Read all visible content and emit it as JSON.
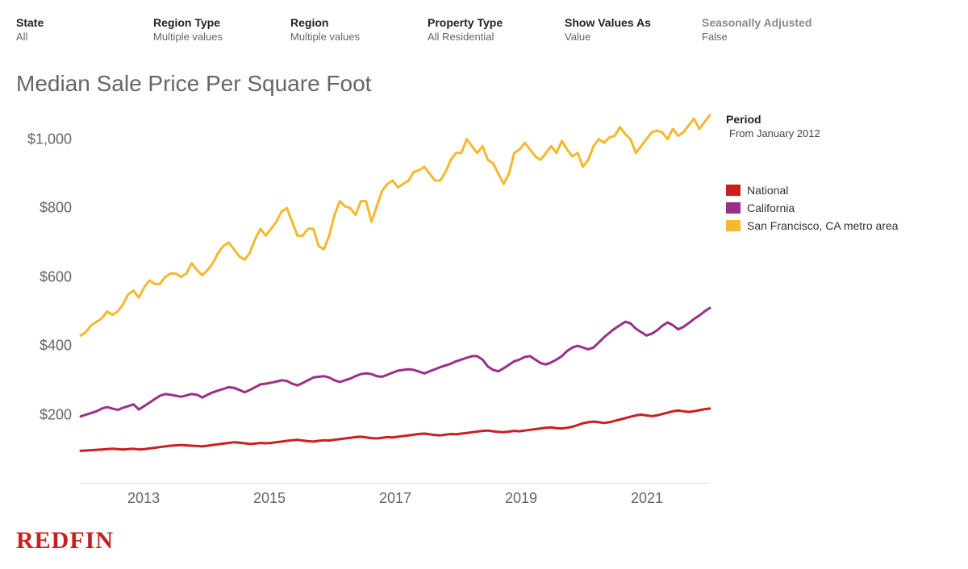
{
  "filters": [
    {
      "label": "State",
      "value": "All",
      "muted": false
    },
    {
      "label": "Region Type",
      "value": "Multiple values",
      "muted": false
    },
    {
      "label": "Region",
      "value": "Multiple values",
      "muted": false
    },
    {
      "label": "Property Type",
      "value": "All Residential",
      "muted": false
    },
    {
      "label": "Show Values As",
      "value": "Value",
      "muted": false
    },
    {
      "label": "Seasonally Adjusted",
      "value": "False",
      "muted": true
    }
  ],
  "title": "Median Sale Price Per Square Foot",
  "period": {
    "label": "Period",
    "value": "From January 2012"
  },
  "legend": [
    {
      "label": "National",
      "color": "#c82021"
    },
    {
      "label": "California",
      "color": "#9b2f86"
    },
    {
      "label": "San Francisco, CA metro area",
      "color": "#f5b82e"
    }
  ],
  "logo": "REDFIN",
  "chart": {
    "type": "line",
    "background_color": "#ffffff",
    "line_width": 3,
    "x": {
      "min": 2012,
      "max": 2022,
      "ticks": [
        2013,
        2015,
        2017,
        2019,
        2021
      ]
    },
    "y": {
      "min": 0,
      "max": 1100,
      "ticks": [
        200,
        400,
        600,
        800,
        1000
      ],
      "prefix": "$",
      "format_thousands": true
    },
    "series": [
      {
        "name": "San Francisco, CA metro area",
        "color": "#f5b82e",
        "values": [
          430,
          440,
          460,
          470,
          480,
          500,
          490,
          500,
          520,
          550,
          560,
          540,
          570,
          590,
          580,
          580,
          600,
          610,
          610,
          600,
          610,
          640,
          620,
          605,
          620,
          640,
          670,
          690,
          700,
          680,
          660,
          650,
          670,
          710,
          740,
          720,
          740,
          760,
          790,
          800,
          760,
          720,
          720,
          740,
          740,
          690,
          680,
          720,
          780,
          820,
          805,
          800,
          780,
          820,
          820,
          760,
          805,
          850,
          870,
          880,
          860,
          870,
          880,
          905,
          910,
          920,
          900,
          880,
          880,
          905,
          940,
          960,
          960,
          1000,
          980,
          960,
          980,
          940,
          930,
          900,
          870,
          900,
          960,
          970,
          990,
          970,
          950,
          940,
          960,
          980,
          960,
          995,
          970,
          950,
          960,
          920,
          940,
          980,
          1000,
          990,
          1005,
          1010,
          1035,
          1015,
          1000,
          960,
          980,
          1000,
          1020,
          1025,
          1020,
          1000,
          1030,
          1010,
          1020,
          1040,
          1060,
          1030,
          1050,
          1070
        ]
      },
      {
        "name": "California",
        "color": "#9b2f86",
        "values": [
          195,
          200,
          205,
          210,
          218,
          222,
          218,
          214,
          220,
          225,
          230,
          215,
          225,
          235,
          245,
          255,
          260,
          258,
          255,
          252,
          256,
          260,
          258,
          250,
          258,
          265,
          270,
          275,
          280,
          278,
          272,
          265,
          272,
          280,
          288,
          290,
          293,
          296,
          300,
          298,
          290,
          285,
          292,
          300,
          308,
          310,
          312,
          308,
          300,
          295,
          300,
          305,
          312,
          318,
          320,
          318,
          312,
          310,
          316,
          322,
          328,
          330,
          332,
          330,
          325,
          320,
          326,
          332,
          338,
          343,
          348,
          355,
          360,
          365,
          370,
          370,
          360,
          340,
          330,
          326,
          335,
          345,
          355,
          360,
          368,
          370,
          360,
          350,
          346,
          352,
          360,
          370,
          385,
          395,
          400,
          395,
          390,
          395,
          410,
          425,
          438,
          450,
          460,
          470,
          465,
          450,
          440,
          430,
          435,
          445,
          458,
          468,
          460,
          448,
          455,
          466,
          478,
          488,
          500,
          510
        ]
      },
      {
        "name": "National",
        "color": "#c82021",
        "values": [
          95,
          96,
          97,
          98,
          99,
          100,
          101,
          100,
          99,
          100,
          101,
          99,
          100,
          102,
          104,
          106,
          108,
          110,
          111,
          112,
          111,
          110,
          109,
          108,
          110,
          112,
          114,
          116,
          118,
          120,
          119,
          117,
          115,
          116,
          118,
          117,
          118,
          120,
          122,
          124,
          126,
          127,
          125,
          123,
          122,
          124,
          126,
          125,
          127,
          129,
          131,
          133,
          135,
          136,
          134,
          132,
          131,
          133,
          135,
          134,
          136,
          138,
          140,
          142,
          144,
          145,
          143,
          141,
          140,
          142,
          144,
          143,
          145,
          147,
          149,
          151,
          153,
          154,
          152,
          150,
          149,
          151,
          153,
          152,
          154,
          156,
          158,
          160,
          162,
          163,
          161,
          160,
          162,
          165,
          170,
          175,
          178,
          180,
          178,
          176,
          178,
          182,
          186,
          190,
          194,
          198,
          200,
          198,
          196,
          198,
          202,
          206,
          210,
          212,
          210,
          208,
          210,
          213,
          216,
          218
        ]
      }
    ]
  }
}
